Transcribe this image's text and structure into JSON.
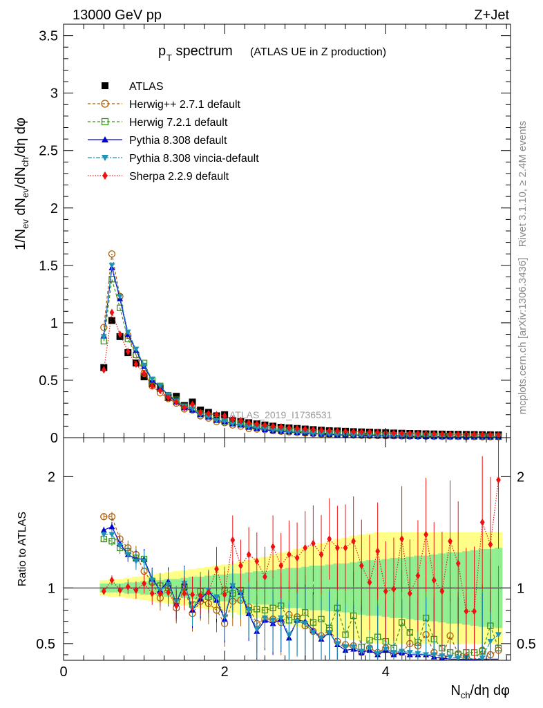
{
  "header": {
    "left": "13000 GeV pp",
    "right": "Z+Jet"
  },
  "side_text": {
    "rivet": "Rivet 3.1.10, ≥ 2.4M events",
    "mcplots": "mcplots.cern.ch [arXiv:1306.3436]"
  },
  "chart_data": [
    {
      "type": "scatter",
      "title_main": "p",
      "title_sub": "T",
      "title_rest": " spectrum",
      "title_paren": "(ATLAS UE in Z production)",
      "watermark": "ATLAS_2019_I1736531",
      "ylabel": "1/N_ev dN_ev/dN_ch/dη dφ",
      "ylim": [
        0,
        3.6
      ],
      "xlim": [
        0,
        5.55
      ],
      "yticks": [
        "0",
        "0.5",
        "1",
        "1.5",
        "2",
        "2.5",
        "3",
        "3.5"
      ],
      "ytick_values": [
        0,
        0.5,
        1,
        1.5,
        2,
        2.5,
        3,
        3.5
      ],
      "legend_position": "top-left",
      "x": [
        0.5,
        0.6,
        0.7,
        0.8,
        0.9,
        1.0,
        1.1,
        1.2,
        1.3,
        1.4,
        1.5,
        1.6,
        1.7,
        1.8,
        1.9,
        2.0,
        2.1,
        2.2,
        2.3,
        2.4,
        2.5,
        2.6,
        2.7,
        2.8,
        2.9,
        3.0,
        3.1,
        3.2,
        3.3,
        3.4,
        3.5,
        3.6,
        3.7,
        3.8,
        3.9,
        4.0,
        4.1,
        4.2,
        4.3,
        4.4,
        4.5,
        4.6,
        4.7,
        4.8,
        4.9,
        5.0,
        5.1,
        5.2,
        5.3,
        5.4
      ],
      "series": [
        {
          "name": "ATLAS",
          "color": "#000000",
          "marker": "square-filled",
          "dash": "none",
          "values": [
            0.61,
            1.02,
            0.88,
            0.74,
            0.65,
            0.53,
            0.47,
            0.43,
            0.35,
            0.36,
            0.28,
            0.31,
            0.24,
            0.22,
            0.19,
            0.2,
            0.15,
            0.14,
            0.13,
            0.12,
            0.11,
            0.1,
            0.09,
            0.085,
            0.08,
            0.075,
            0.07,
            0.065,
            0.06,
            0.058,
            0.055,
            0.052,
            0.05,
            0.048,
            0.045,
            0.043,
            0.04,
            0.038,
            0.036,
            0.035,
            0.033,
            0.032,
            0.031,
            0.03,
            0.029,
            0.028,
            0.027,
            0.026,
            0.025,
            0.024
          ]
        },
        {
          "name": "Herwig++ 2.7.1 default",
          "color": "#b35a00",
          "marker": "circle-open",
          "dash": "4,3",
          "values": [
            0.96,
            1.6,
            1.23,
            0.89,
            0.72,
            0.56,
            0.45,
            0.39,
            0.34,
            0.3,
            0.25,
            0.24,
            0.19,
            0.17,
            0.14,
            0.13,
            0.11,
            0.1,
            0.08,
            0.075,
            0.07,
            0.06,
            0.055,
            0.05,
            0.045,
            0.04,
            0.035,
            0.032,
            0.03,
            0.028,
            0.025,
            0.022,
            0.02,
            0.019,
            0.018,
            0.017,
            0.016,
            0.015,
            0.014,
            0.013,
            0.012,
            0.011,
            0.011,
            0.01,
            0.01,
            0.009,
            0.009,
            0.008,
            0.008,
            0.008
          ]
        },
        {
          "name": "Herwig 7.2.1 default",
          "color": "#3a8f1a",
          "marker": "square-open",
          "dash": "4,3",
          "values": [
            0.84,
            1.38,
            1.13,
            0.86,
            0.72,
            0.65,
            0.5,
            0.45,
            0.37,
            0.33,
            0.27,
            0.26,
            0.21,
            0.19,
            0.16,
            0.14,
            0.13,
            0.12,
            0.1,
            0.09,
            0.085,
            0.075,
            0.07,
            0.06,
            0.055,
            0.05,
            0.045,
            0.04,
            0.038,
            0.035,
            0.032,
            0.03,
            0.028,
            0.026,
            0.024,
            0.022,
            0.02,
            0.019,
            0.018,
            0.017,
            0.016,
            0.015,
            0.014,
            0.013,
            0.012,
            0.012,
            0.011,
            0.011,
            0.01,
            0.01
          ]
        },
        {
          "name": "Pythia 8.308 default",
          "color": "#0000cc",
          "marker": "triangle-up-filled",
          "dash": "none",
          "values": [
            0.89,
            1.48,
            1.21,
            0.9,
            0.76,
            0.62,
            0.5,
            0.44,
            0.37,
            0.31,
            0.26,
            0.24,
            0.2,
            0.18,
            0.15,
            0.14,
            0.12,
            0.11,
            0.09,
            0.08,
            0.07,
            0.06,
            0.055,
            0.05,
            0.045,
            0.04,
            0.035,
            0.03,
            0.028,
            0.025,
            0.022,
            0.02,
            0.018,
            0.017,
            0.015,
            0.014,
            0.013,
            0.012,
            0.011,
            0.01,
            0.01,
            0.009,
            0.009,
            0.008,
            0.008,
            0.007,
            0.007,
            0.007,
            0.006,
            0.006
          ]
        },
        {
          "name": "Pythia 8.308 vincia-default",
          "color": "#1f93b5",
          "marker": "triangle-down-filled",
          "dash": "6,2,2,2",
          "values": [
            0.88,
            1.5,
            1.23,
            0.92,
            0.77,
            0.63,
            0.51,
            0.45,
            0.37,
            0.32,
            0.27,
            0.25,
            0.2,
            0.18,
            0.15,
            0.14,
            0.12,
            0.11,
            0.095,
            0.085,
            0.075,
            0.065,
            0.06,
            0.052,
            0.047,
            0.042,
            0.037,
            0.032,
            0.03,
            0.027,
            0.024,
            0.021,
            0.019,
            0.018,
            0.016,
            0.015,
            0.014,
            0.013,
            0.012,
            0.011,
            0.011,
            0.01,
            0.009,
            0.009,
            0.008,
            0.008,
            0.007,
            0.007,
            0.007,
            0.006
          ]
        },
        {
          "name": "Sherpa 2.2.9 default",
          "color": "#ee1111",
          "marker": "diamond-filled",
          "dash": "1.5,2",
          "values": [
            0.59,
            1.09,
            0.9,
            0.75,
            0.64,
            0.56,
            0.45,
            0.41,
            0.35,
            0.31,
            0.26,
            0.29,
            0.22,
            0.21,
            0.2,
            0.19,
            0.16,
            0.15,
            0.13,
            0.12,
            0.11,
            0.1,
            0.095,
            0.085,
            0.08,
            0.075,
            0.07,
            0.065,
            0.06,
            0.058,
            0.055,
            0.052,
            0.05,
            0.048,
            0.045,
            0.043,
            0.04,
            0.038,
            0.036,
            0.035,
            0.033,
            0.032,
            0.031,
            0.03,
            0.029,
            0.028,
            0.027,
            0.026,
            0.025,
            0.024
          ]
        }
      ]
    },
    {
      "type": "scatter",
      "ylabel": "Ratio to ATLAS",
      "xlabel": "N_ch/dη dφ",
      "xlim": [
        0,
        5.55
      ],
      "ylim": [
        0.35,
        2.35
      ],
      "xticks": [
        "0",
        "2",
        "4"
      ],
      "xtick_values": [
        0,
        2,
        4
      ],
      "yticks": [
        "0.5",
        "1",
        "2"
      ],
      "ytick_values": [
        0.5,
        1,
        2
      ],
      "reference_line": 1,
      "x": [
        0.5,
        0.6,
        0.7,
        0.8,
        0.9,
        1.0,
        1.1,
        1.2,
        1.3,
        1.4,
        1.5,
        1.6,
        1.7,
        1.8,
        1.9,
        2.0,
        2.1,
        2.2,
        2.3,
        2.4,
        2.5,
        2.6,
        2.7,
        2.8,
        2.9,
        3.0,
        3.1,
        3.2,
        3.3,
        3.4,
        3.5,
        3.6,
        3.7,
        3.8,
        3.9,
        4.0,
        4.1,
        4.2,
        4.3,
        4.4,
        4.5,
        4.6,
        4.7,
        4.8,
        4.9,
        5.0,
        5.1,
        5.2,
        5.3,
        5.4
      ],
      "band_stat": [
        0.04,
        0.04,
        0.04,
        0.05,
        0.05,
        0.06,
        0.06,
        0.07,
        0.08,
        0.08,
        0.09,
        0.1,
        0.1,
        0.11,
        0.12,
        0.12,
        0.13,
        0.13,
        0.14,
        0.15,
        0.15,
        0.16,
        0.17,
        0.18,
        0.18,
        0.19,
        0.2,
        0.2,
        0.21,
        0.22,
        0.22,
        0.23,
        0.24,
        0.25,
        0.25,
        0.26,
        0.27,
        0.27,
        0.28,
        0.29,
        0.29,
        0.3,
        0.31,
        0.32,
        0.32,
        0.33,
        0.34,
        0.35,
        0.35,
        0.36
      ],
      "band_total": [
        0.07,
        0.08,
        0.08,
        0.09,
        0.1,
        0.11,
        0.12,
        0.13,
        0.14,
        0.15,
        0.16,
        0.17,
        0.18,
        0.19,
        0.2,
        0.21,
        0.22,
        0.24,
        0.25,
        0.27,
        0.28,
        0.3,
        0.32,
        0.33,
        0.35,
        0.37,
        0.38,
        0.4,
        0.42,
        0.44,
        0.45,
        0.47,
        0.48,
        0.49,
        0.5,
        0.5,
        0.5,
        0.5,
        0.5,
        0.5,
        0.5,
        0.5,
        0.5,
        0.5,
        0.5,
        0.5,
        0.5,
        0.5,
        0.5,
        0.5
      ],
      "series": [
        {
          "name": "Herwig++ 2.7.1 default",
          "color": "#b35a00",
          "marker": "circle-open",
          "dash": "4,3",
          "values": [
            1.64,
            1.64,
            1.44,
            1.36,
            1.3,
            1.15,
            1.05,
            0.91,
            1.02,
            0.82,
            1.0,
            0.77,
            0.88,
            0.86,
            0.8,
            0.68,
            0.88,
            0.89,
            0.83,
            0.68,
            0.72,
            0.72,
            0.69,
            0.76,
            0.74,
            0.66,
            0.61,
            0.57,
            0.62,
            0.52,
            0.49,
            0.48,
            0.42,
            0.46,
            0.42,
            0.46,
            0.41,
            0.42,
            0.5,
            0.48,
            0.58,
            0.42,
            0.38,
            0.57,
            0.41,
            0.38,
            0.32,
            0.44,
            0.4,
            0.44
          ]
        },
        {
          "name": "Herwig 7.2.1 default",
          "color": "#3a8f1a",
          "marker": "square-open",
          "dash": "4,3",
          "values": [
            1.44,
            1.42,
            1.36,
            1.33,
            1.27,
            1.26,
            1.06,
            1.02,
            1.0,
            0.88,
            1.01,
            0.85,
            0.97,
            0.92,
            0.9,
            0.98,
            0.95,
            0.98,
            0.8,
            0.81,
            0.8,
            0.82,
            0.84,
            0.71,
            0.72,
            0.78,
            0.69,
            0.72,
            0.64,
            0.82,
            0.58,
            0.75,
            0.47,
            0.53,
            0.56,
            0.52,
            0.46,
            0.69,
            0.6,
            0.51,
            0.73,
            0.54,
            0.46,
            0.42,
            0.4,
            0.42,
            0.42,
            0.43,
            0.66,
            0.46
          ]
        },
        {
          "name": "Pythia 8.308 default",
          "color": "#0000cc",
          "marker": "triangle-up-filled",
          "dash": "none",
          "values": [
            1.52,
            1.55,
            1.4,
            1.3,
            1.26,
            1.26,
            1.08,
            0.98,
            1.06,
            0.86,
            1.05,
            0.8,
            0.9,
            0.97,
            0.89,
            0.72,
            1.02,
            0.96,
            0.77,
            0.61,
            0.71,
            0.68,
            0.72,
            0.55,
            0.71,
            0.7,
            0.62,
            0.54,
            0.6,
            0.49,
            0.44,
            0.45,
            0.42,
            0.44,
            0.4,
            0.44,
            0.4,
            0.42,
            0.4,
            0.4,
            0.4,
            0.38,
            0.37,
            0.36,
            0.36,
            0.35,
            0.35,
            0.36,
            0.36,
            0.36
          ]
        },
        {
          "name": "Pythia 8.308 vincia-default",
          "color": "#1f93b5",
          "marker": "triangle-down-filled",
          "dash": "6,2,2,2",
          "values": [
            1.48,
            1.48,
            1.38,
            1.3,
            1.24,
            1.24,
            1.07,
            0.98,
            1.03,
            0.88,
            1.04,
            0.82,
            0.92,
            0.98,
            0.92,
            0.74,
            1.02,
            0.96,
            0.8,
            0.63,
            0.73,
            0.71,
            0.73,
            0.58,
            0.7,
            0.68,
            0.6,
            0.55,
            0.6,
            0.5,
            0.47,
            0.47,
            0.43,
            0.46,
            0.41,
            0.45,
            0.42,
            0.43,
            0.42,
            0.41,
            0.4,
            0.4,
            0.39,
            0.38,
            0.37,
            0.37,
            0.36,
            0.37,
            0.52,
            0.58
          ]
        },
        {
          "name": "Sherpa 2.2.9 default",
          "color": "#ee1111",
          "marker": "diamond-filled",
          "dash": "1.5,2",
          "values": [
            0.97,
            1.07,
            0.98,
            1.01,
            0.98,
            1.04,
            0.95,
            0.95,
            0.96,
            0.84,
            0.95,
            0.94,
            0.93,
            0.96,
            1.17,
            0.94,
            1.43,
            1.2,
            1.3,
            1.24,
            1.1,
            1.37,
            1.2,
            1.3,
            1.27,
            1.36,
            1.4,
            1.3,
            1.44,
            1.36,
            1.36,
            1.42,
            1.2,
            1.05,
            1.33,
            0.97,
            0.99,
            1.44,
            0.95,
            1.11,
            1.48,
            1.07,
            0.97,
            1.42,
            1.22,
            0.79,
            0.79,
            1.59,
            1.39,
            1.97
          ]
        }
      ]
    }
  ]
}
